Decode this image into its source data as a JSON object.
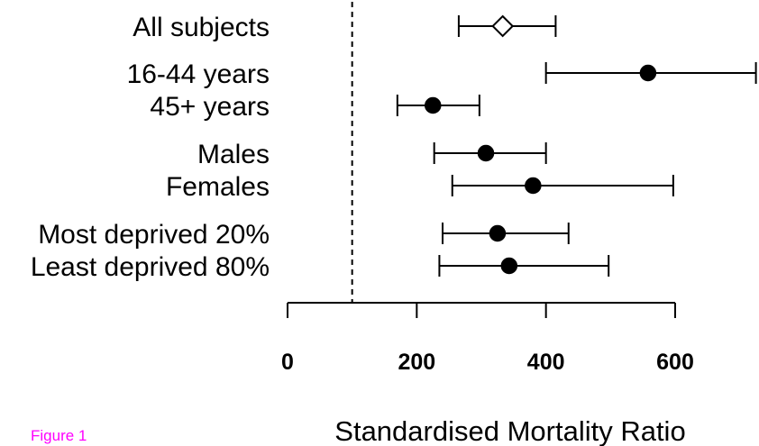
{
  "figure_label": "Figure 1",
  "colors": {
    "figure_label": "#ff00ff",
    "ink": "#000000",
    "background": "#ffffff"
  },
  "chart_data": {
    "type": "forest",
    "xlabel": "Standardised Mortality Ratio",
    "xlim": [
      0,
      730
    ],
    "xticks": [
      0,
      200,
      400,
      600
    ],
    "xtick_labels": [
      "0",
      "200",
      "400",
      "600"
    ],
    "reference_line": 100,
    "rows": [
      {
        "label": "All subjects",
        "estimate": 333,
        "lower": 265,
        "upper": 415,
        "marker": "open-diamond"
      },
      {
        "label": "16-44 years",
        "estimate": 558,
        "lower": 400,
        "upper": 725,
        "marker": "filled-circle"
      },
      {
        "label": "45+ years",
        "estimate": 225,
        "lower": 170,
        "upper": 297,
        "marker": "filled-circle"
      },
      {
        "label": "Males",
        "estimate": 307,
        "lower": 227,
        "upper": 400,
        "marker": "filled-circle"
      },
      {
        "label": "Females",
        "estimate": 380,
        "lower": 255,
        "upper": 597,
        "marker": "filled-circle"
      },
      {
        "label": "Most deprived 20%",
        "estimate": 325,
        "lower": 240,
        "upper": 435,
        "marker": "filled-circle"
      },
      {
        "label": "Least deprived 80%",
        "estimate": 343,
        "lower": 235,
        "upper": 497,
        "marker": "filled-circle"
      }
    ]
  }
}
